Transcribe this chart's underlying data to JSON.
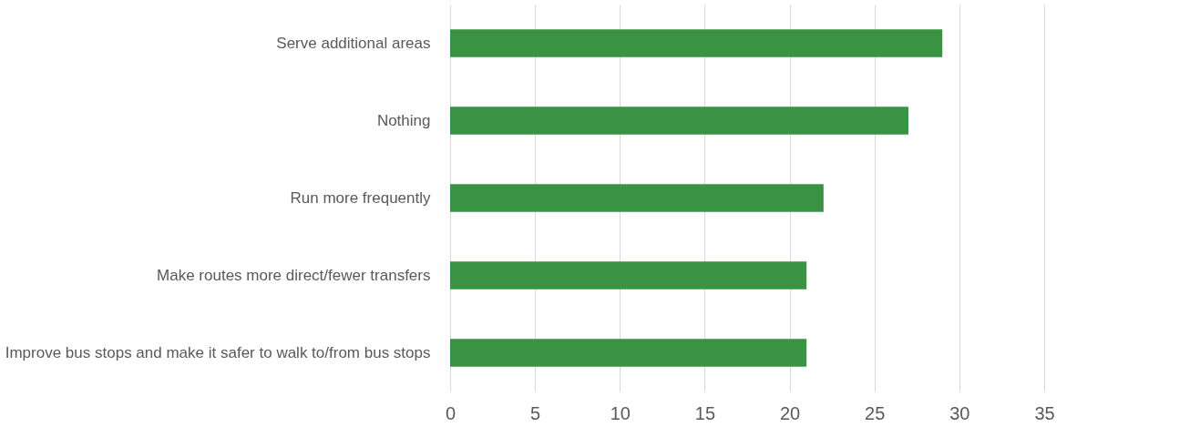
{
  "chart_data": {
    "type": "bar",
    "orientation": "horizontal",
    "categories": [
      "Serve additional areas",
      "Nothing",
      "Run more frequently",
      "Make routes more direct/fewer transfers",
      "Improve bus stops and make it safer to walk to/from bus stops"
    ],
    "values": [
      29,
      27,
      22,
      21,
      21
    ],
    "color": "#3a9343",
    "xlim": [
      0,
      35
    ],
    "xticks": [
      0,
      5,
      10,
      15,
      20,
      25,
      30,
      35
    ],
    "grid": "x"
  }
}
